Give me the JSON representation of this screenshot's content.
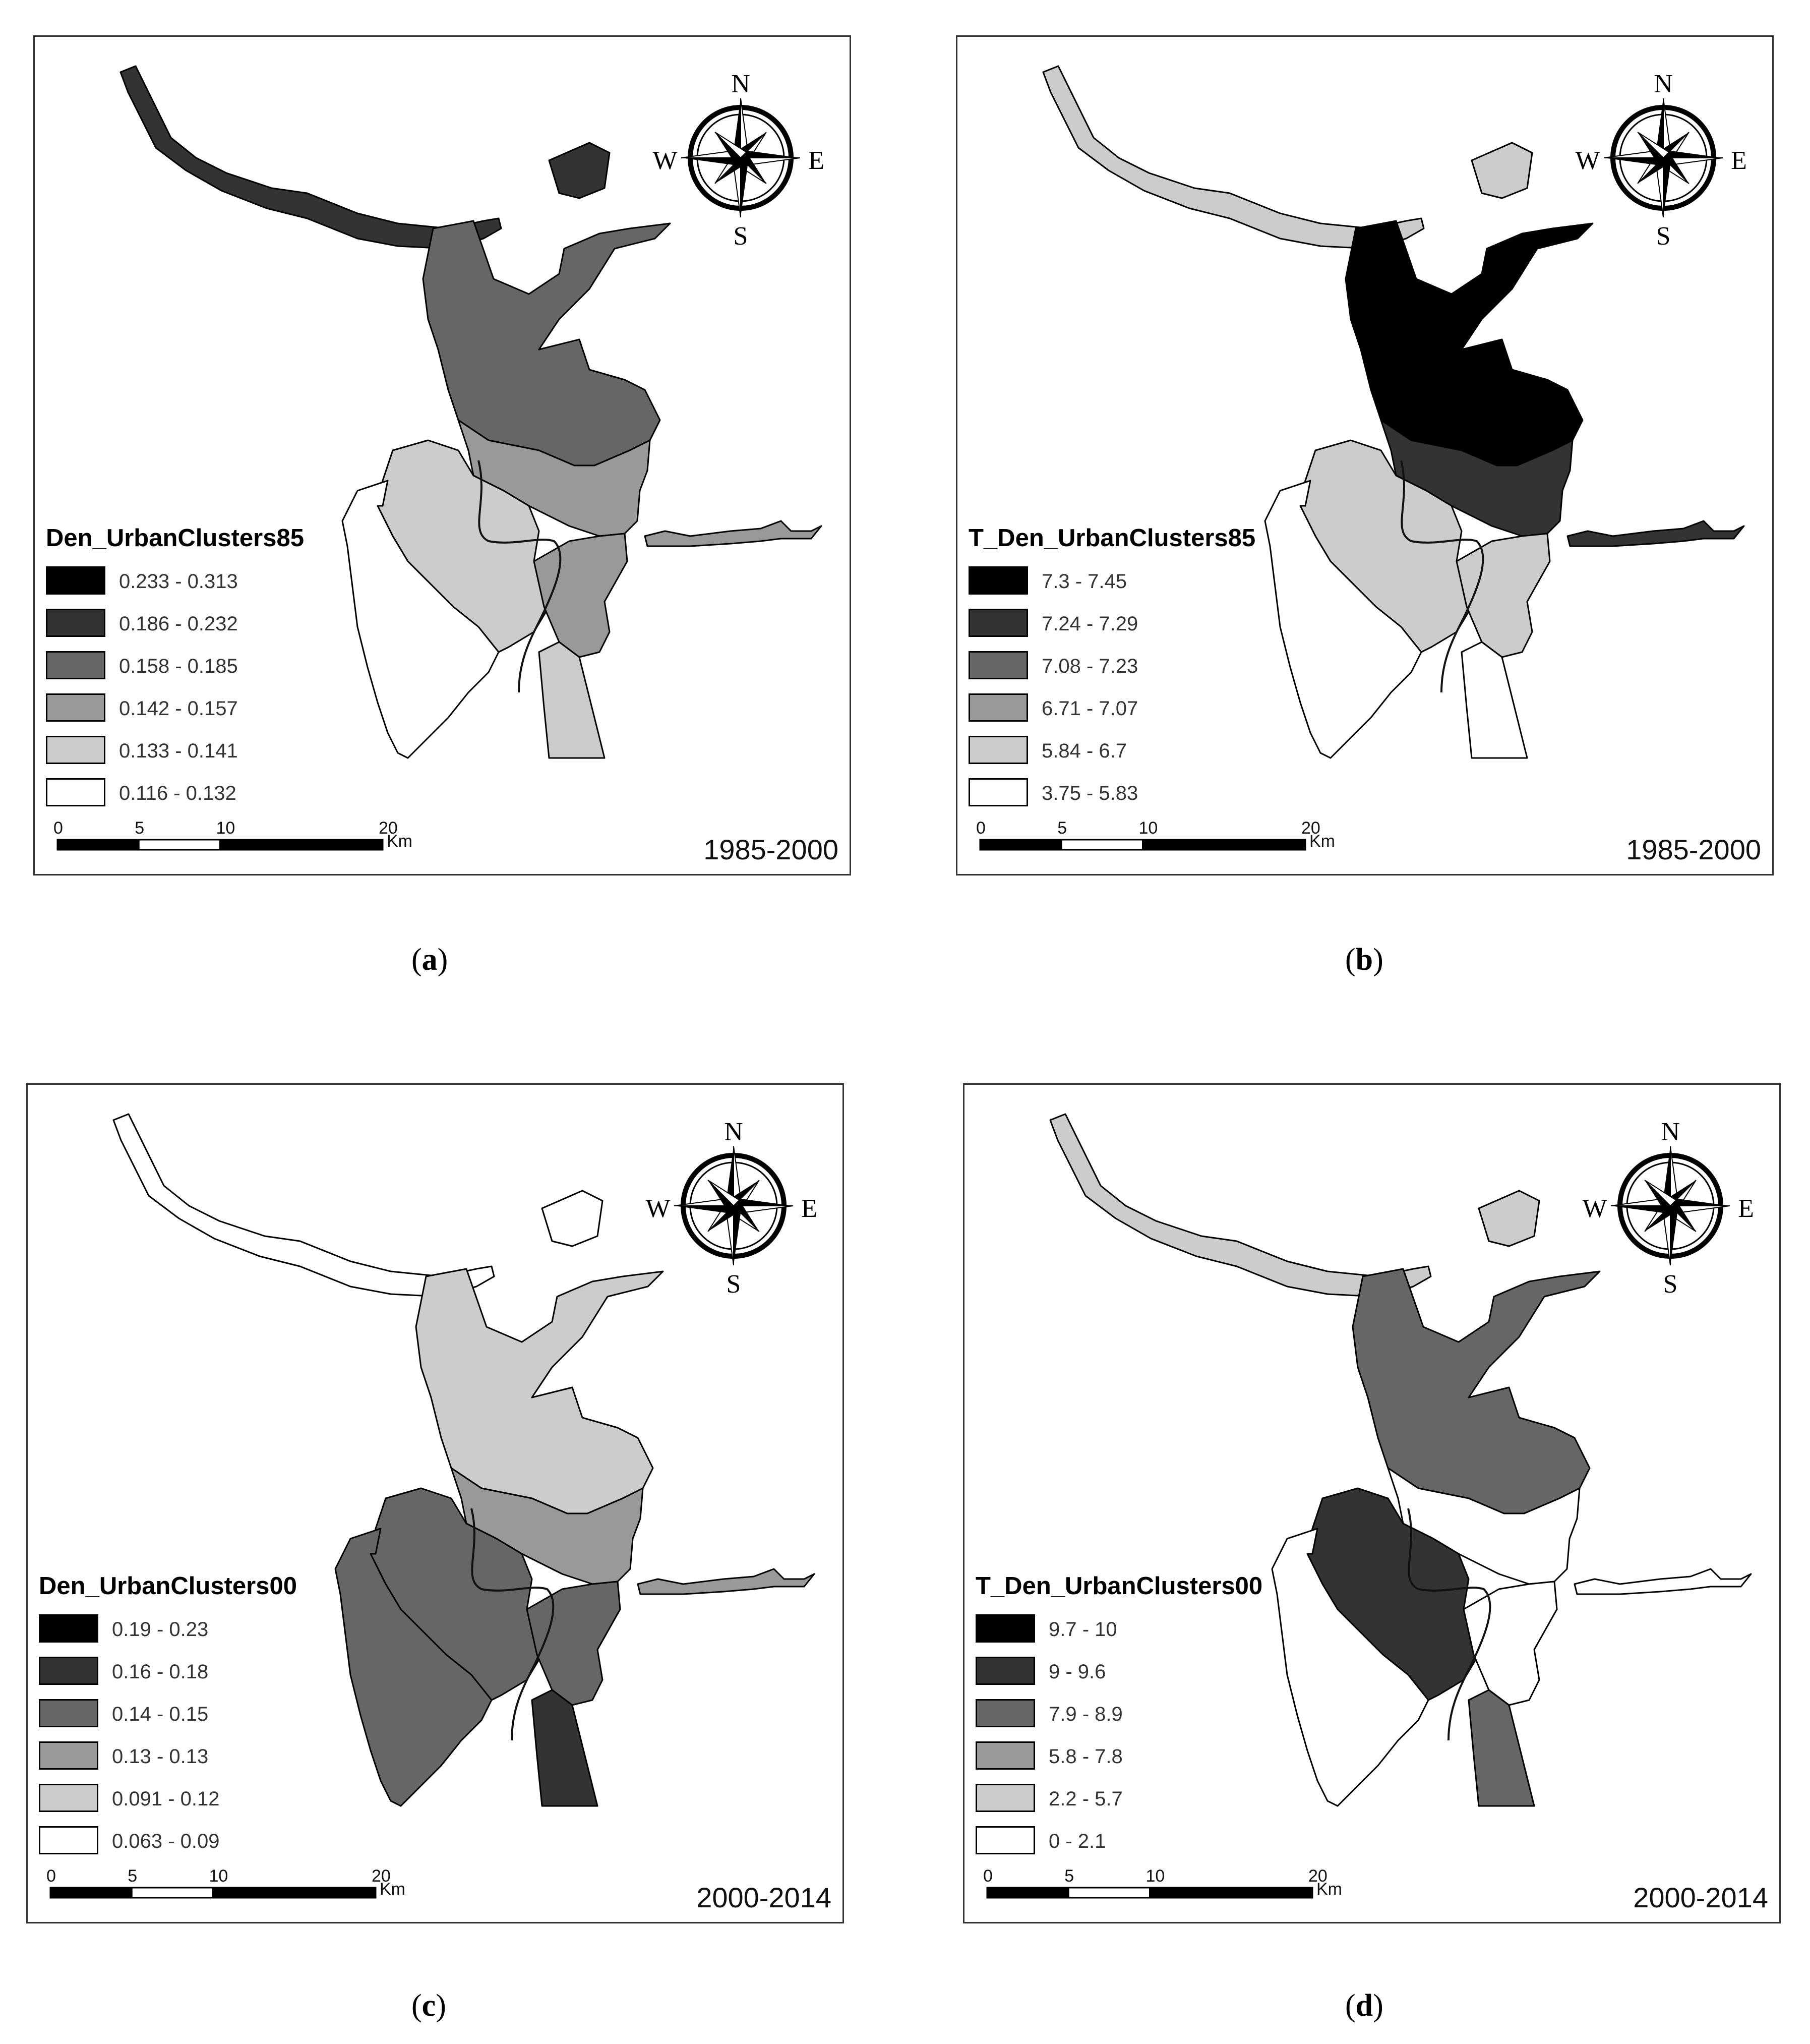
{
  "panels": [
    {
      "caption": "a",
      "legend_title": "Den_UrbanClusters85",
      "period": "1985-2000",
      "legend": [
        {
          "label": "0.233 - 0.313",
          "color": "#000000"
        },
        {
          "label": "0.186 - 0.232",
          "color": "#333333"
        },
        {
          "label": "0.158 - 0.185",
          "color": "#666666"
        },
        {
          "label": "0.142 - 0.157",
          "color": "#999999"
        },
        {
          "label": "0.133 - 0.141",
          "color": "#cccccc"
        },
        {
          "label": "0.116 - 0.132",
          "color": "#ffffff"
        }
      ],
      "zones": {
        "north": "#666666",
        "middle": "#999999",
        "southwest": "#cccccc",
        "southeast": "#999999",
        "west": "#ffffff",
        "spike": "#cccccc",
        "northarm": "#333333"
      }
    },
    {
      "caption": "b",
      "legend_title": "T_Den_UrbanClusters85",
      "period": "1985-2000",
      "legend": [
        {
          "label": "7.3 - 7.45",
          "color": "#000000"
        },
        {
          "label": "7.24 - 7.29",
          "color": "#333333"
        },
        {
          "label": "7.08 - 7.23",
          "color": "#666666"
        },
        {
          "label": "6.71 - 7.07",
          "color": "#999999"
        },
        {
          "label": "5.84 - 6.7",
          "color": "#cccccc"
        },
        {
          "label": "3.75 - 5.83",
          "color": "#ffffff"
        }
      ],
      "zones": {
        "north": "#000000",
        "middle": "#333333",
        "southwest": "#cccccc",
        "southeast": "#cccccc",
        "west": "#ffffff",
        "spike": "#ffffff",
        "northarm": "#cccccc"
      }
    },
    {
      "caption": "c",
      "legend_title": "Den_UrbanClusters00",
      "period": "2000-2014",
      "legend": [
        {
          "label": "0.19 - 0.23",
          "color": "#000000"
        },
        {
          "label": "0.16 - 0.18",
          "color": "#333333"
        },
        {
          "label": "0.14 - 0.15",
          "color": "#666666"
        },
        {
          "label": "0.13 - 0.13",
          "color": "#999999"
        },
        {
          "label": "0.091 - 0.12",
          "color": "#cccccc"
        },
        {
          "label": "0.063 - 0.09",
          "color": "#ffffff"
        }
      ],
      "zones": {
        "north": "#cccccc",
        "middle": "#999999",
        "southwest": "#666666",
        "southeast": "#666666",
        "west": "#666666",
        "spike": "#333333",
        "northarm": "#ffffff"
      }
    },
    {
      "caption": "d",
      "legend_title": "T_Den_UrbanClusters00",
      "period": "2000-2014",
      "legend": [
        {
          "label": "9.7 - 10",
          "color": "#000000"
        },
        {
          "label": "9 - 9.6",
          "color": "#333333"
        },
        {
          "label": "7.9 - 8.9",
          "color": "#666666"
        },
        {
          "label": "5.8 - 7.8",
          "color": "#999999"
        },
        {
          "label": "2.2 - 5.7",
          "color": "#cccccc"
        },
        {
          "label": "0 - 2.1",
          "color": "#ffffff"
        }
      ],
      "zones": {
        "north": "#666666",
        "middle": "#ffffff",
        "southwest": "#333333",
        "southeast": "#ffffff",
        "west": "#ffffff",
        "spike": "#666666",
        "northarm": "#cccccc"
      }
    }
  ],
  "compass": {
    "n": "N",
    "s": "S",
    "e": "E",
    "w": "W"
  },
  "scale_bar": {
    "ticks": [
      "0",
      "5",
      "10",
      "20"
    ],
    "unit": "Km"
  }
}
